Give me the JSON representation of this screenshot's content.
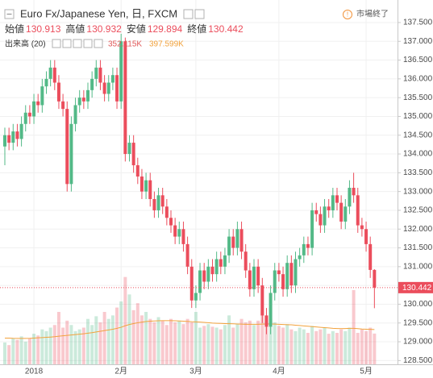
{
  "chart_data": {
    "type": "candlestick",
    "title": "Euro Fx/Japanese Yen, 日, FXCM",
    "ohlc_labels": [
      "始値",
      "高値",
      "安値",
      "終値"
    ],
    "volume_title": "出来高 (20)",
    "volume_value_label": "352.115K",
    "volume_ma_value_label": "397.599K",
    "status": "市場終了",
    "up_color": "#53b987",
    "down_color": "#eb4d5c",
    "ma_color": "#f2a23c",
    "categories": [
      null,
      null,
      null,
      null,
      null,
      null,
      null,
      "2018",
      null,
      null,
      null,
      null,
      null,
      null,
      null,
      null,
      null,
      null,
      null,
      null,
      null,
      null,
      null,
      null,
      null,
      null,
      null,
      null,
      "2月",
      null,
      null,
      null,
      null,
      null,
      null,
      null,
      null,
      null,
      null,
      null,
      null,
      null,
      null,
      null,
      null,
      null,
      "3月",
      null,
      null,
      null,
      null,
      null,
      null,
      null,
      null,
      null,
      null,
      null,
      null,
      null,
      null,
      null,
      null,
      null,
      null,
      null,
      "4月",
      null,
      null,
      null,
      null,
      null,
      null,
      null,
      null,
      null,
      null,
      null,
      null,
      null,
      null,
      null,
      null,
      null,
      null,
      null,
      null,
      "5月",
      null,
      null
    ],
    "open": [
      134.2,
      134.5,
      134.3,
      134.6,
      134.4,
      134.8,
      135.1,
      135.0,
      135.4,
      135.3,
      135.8,
      136.0,
      136.3,
      135.9,
      135.4,
      135.2,
      133.2,
      134.8,
      135.3,
      135.5,
      135.4,
      135.7,
      136.0,
      136.3,
      135.9,
      135.6,
      135.9,
      136.1,
      135.4,
      137.0,
      134.0,
      134.3,
      133.7,
      133.4,
      133.0,
      133.3,
      132.8,
      132.5,
      132.9,
      132.6,
      132.3,
      132.1,
      131.8,
      132.0,
      131.6,
      131.0,
      130.1,
      130.3,
      130.9,
      130.6,
      131.0,
      130.8,
      131.2,
      131.0,
      131.3,
      131.8,
      131.5,
      132.0,
      131.4,
      130.9,
      130.4,
      131.0,
      130.5,
      129.7,
      129.4,
      130.3,
      130.9,
      130.8,
      130.4,
      131.1,
      130.5,
      131.2,
      131.3,
      131.6,
      131.5,
      132.5,
      132.4,
      132.1,
      132.6,
      132.5,
      132.9,
      132.7,
      132.2,
      132.6,
      133.1,
      132.9,
      132.1,
      132.0,
      131.6,
      130.913
    ],
    "high": [
      134.7,
      134.7,
      134.8,
      134.8,
      135.0,
      135.3,
      135.3,
      135.6,
      135.6,
      136.0,
      136.2,
      136.5,
      136.5,
      136.1,
      135.6,
      135.4,
      135.0,
      135.5,
      135.7,
      135.7,
      135.9,
      136.2,
      136.5,
      136.5,
      136.1,
      136.1,
      136.3,
      136.3,
      137.2,
      137.1,
      134.5,
      134.5,
      133.9,
      133.6,
      133.5,
      133.5,
      133.0,
      133.1,
      133.1,
      132.8,
      132.5,
      132.3,
      132.2,
      132.2,
      131.8,
      131.2,
      130.5,
      131.1,
      131.1,
      131.2,
      131.2,
      131.4,
      131.4,
      131.5,
      132.0,
      132.0,
      132.2,
      132.2,
      131.6,
      131.1,
      131.2,
      131.2,
      130.7,
      129.9,
      130.5,
      131.1,
      131.1,
      131.0,
      131.3,
      131.3,
      131.4,
      131.5,
      131.8,
      131.8,
      132.7,
      132.7,
      132.6,
      132.8,
      132.8,
      133.1,
      133.1,
      132.9,
      132.8,
      133.3,
      133.5,
      133.1,
      132.3,
      132.2,
      131.8,
      130.932
    ],
    "low": [
      133.7,
      134.1,
      134.1,
      134.2,
      134.2,
      134.6,
      134.8,
      134.8,
      135.1,
      135.1,
      135.6,
      135.8,
      135.7,
      135.2,
      135.0,
      133.0,
      133.0,
      134.6,
      135.1,
      135.2,
      135.2,
      135.5,
      135.8,
      135.7,
      135.4,
      135.4,
      135.7,
      135.2,
      135.2,
      133.8,
      133.8,
      133.5,
      133.2,
      132.8,
      132.8,
      132.6,
      132.3,
      132.3,
      132.4,
      132.1,
      131.9,
      131.6,
      131.6,
      131.4,
      130.8,
      129.9,
      129.9,
      130.1,
      130.4,
      130.4,
      130.6,
      130.6,
      130.8,
      130.8,
      131.1,
      131.3,
      131.3,
      131.2,
      130.7,
      130.2,
      130.2,
      130.3,
      129.5,
      129.2,
      129.2,
      130.1,
      130.6,
      130.2,
      130.2,
      130.3,
      130.3,
      131.0,
      131.1,
      131.3,
      131.3,
      132.2,
      131.9,
      131.9,
      132.3,
      132.3,
      132.5,
      132.0,
      132.0,
      132.4,
      132.7,
      131.9,
      131.8,
      131.4,
      130.7,
      129.894
    ],
    "close": [
      134.5,
      134.3,
      134.6,
      134.4,
      134.8,
      135.1,
      135.0,
      135.4,
      135.3,
      135.8,
      136.0,
      136.3,
      135.9,
      135.4,
      135.2,
      133.2,
      134.8,
      135.3,
      135.5,
      135.4,
      135.7,
      136.0,
      136.3,
      135.9,
      135.6,
      135.9,
      136.1,
      135.4,
      137.0,
      134.0,
      134.3,
      133.7,
      133.4,
      133.0,
      133.3,
      132.8,
      132.5,
      132.9,
      132.6,
      132.3,
      132.1,
      131.8,
      132.0,
      131.6,
      131.0,
      130.1,
      130.3,
      130.9,
      130.6,
      131.0,
      130.8,
      131.2,
      131.0,
      131.3,
      131.8,
      131.5,
      132.0,
      131.4,
      130.9,
      130.4,
      131.0,
      130.5,
      129.7,
      129.4,
      130.3,
      130.9,
      130.8,
      130.4,
      131.1,
      130.5,
      131.2,
      131.3,
      131.6,
      131.5,
      132.5,
      132.4,
      132.1,
      132.6,
      132.5,
      132.9,
      132.7,
      132.2,
      132.6,
      133.1,
      132.9,
      132.1,
      132.0,
      131.6,
      130.913,
      130.442
    ],
    "volume": [
      250,
      220,
      300,
      280,
      320,
      260,
      300,
      350,
      330,
      400,
      380,
      420,
      450,
      600,
      420,
      500,
      450,
      380,
      400,
      420,
      520,
      450,
      550,
      480,
      600,
      520,
      560,
      650,
      720,
      1000,
      800,
      620,
      700,
      560,
      600,
      520,
      480,
      540,
      500,
      450,
      520,
      480,
      500,
      460,
      520,
      480,
      600,
      420,
      440,
      460,
      430,
      420,
      400,
      450,
      560,
      420,
      460,
      520,
      480,
      500,
      450,
      500,
      620,
      560,
      520,
      480,
      440,
      420,
      460,
      400,
      380,
      420,
      400,
      360,
      440,
      380,
      400,
      420,
      350,
      380,
      360,
      400,
      380,
      420,
      850,
      360,
      400,
      380,
      420,
      352.115
    ],
    "volume_ma": [
      300,
      300,
      298,
      297,
      296,
      297,
      298,
      300,
      303,
      306,
      309,
      312,
      316,
      322,
      326,
      331,
      336,
      340,
      345,
      350,
      356,
      362,
      370,
      378,
      386,
      394,
      402,
      412,
      424,
      442,
      456,
      466,
      476,
      484,
      490,
      494,
      496,
      498,
      500,
      500,
      500,
      498,
      496,
      494,
      492,
      488,
      486,
      484,
      480,
      476,
      472,
      470,
      468,
      466,
      465,
      464,
      462,
      460,
      458,
      458,
      458,
      458,
      460,
      462,
      462,
      460,
      458,
      456,
      454,
      452,
      448,
      444,
      440,
      436,
      432,
      428,
      424,
      420,
      416,
      412,
      410,
      408,
      410,
      412,
      412,
      408,
      404,
      402,
      400,
      397.599
    ],
    "vlim": [
      0,
      1200
    ],
    "ylim": [
      128.4,
      138.1
    ],
    "yticks": [
      {
        "value": 128.5,
        "label": "128.500"
      },
      {
        "value": 129,
        "label": "129.000"
      },
      {
        "value": 129.5,
        "label": "129.500"
      },
      {
        "value": 130,
        "label": "130.000"
      },
      {
        "value": 130.5,
        "label": "130.500"
      },
      {
        "value": 131,
        "label": "131.000"
      },
      {
        "value": 131.5,
        "label": "131.500"
      },
      {
        "value": 132,
        "label": "132.000"
      },
      {
        "value": 132.5,
        "label": "132.500"
      },
      {
        "value": 133,
        "label": "133.000"
      },
      {
        "value": 133.5,
        "label": "133.500"
      },
      {
        "value": 134,
        "label": "134.000"
      },
      {
        "value": 134.5,
        "label": "134.500"
      },
      {
        "value": 135,
        "label": "135.000"
      },
      {
        "value": 135.5,
        "label": "135.500"
      },
      {
        "value": 136,
        "label": "136.000"
      },
      {
        "value": 136.5,
        "label": "136.500"
      },
      {
        "value": 137,
        "label": "137.000"
      },
      {
        "value": 137.5,
        "label": "137.500"
      }
    ],
    "grid": true
  }
}
